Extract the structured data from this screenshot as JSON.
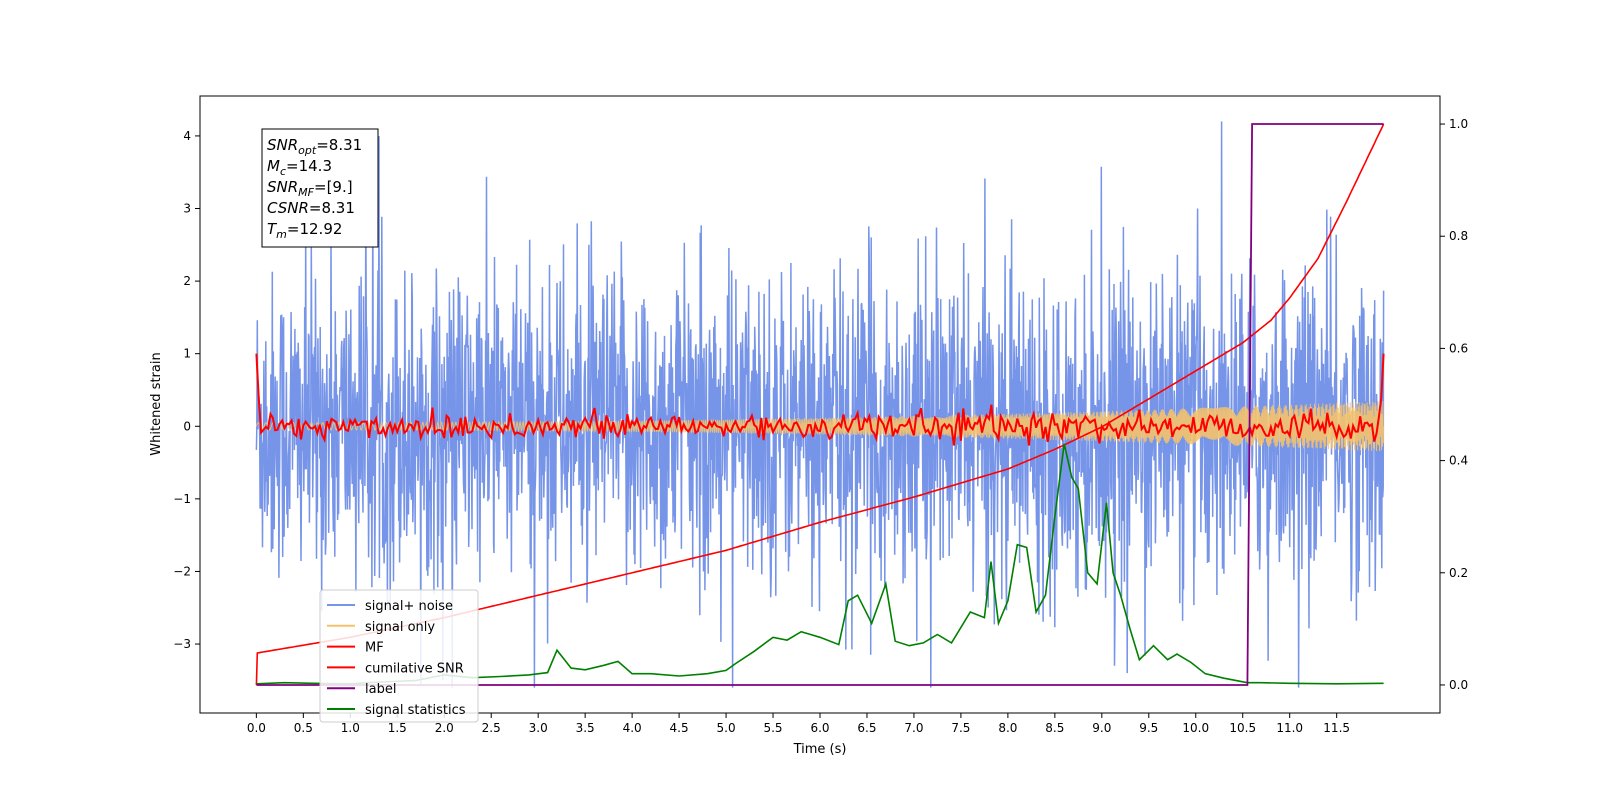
{
  "chart_data": {
    "type": "line",
    "xlabel": "Time (s)",
    "ylabel": "Whitened strain",
    "xlim": [
      -0.6,
      12.6
    ],
    "ylim_left": [
      -3.95,
      4.55
    ],
    "ylim_right": [
      -0.05,
      1.05
    ],
    "x_ticks": [
      "0.0",
      "0.5",
      "1.0",
      "1.5",
      "2.0",
      "2.5",
      "3.0",
      "3.5",
      "4.0",
      "4.5",
      "5.0",
      "5.5",
      "6.0",
      "6.5",
      "7.0",
      "7.5",
      "8.0",
      "8.5",
      "9.0",
      "9.5",
      "10.0",
      "10.5",
      "11.0",
      "11.5"
    ],
    "y_ticks_left": [
      "−3",
      "−2",
      "−1",
      "0",
      "1",
      "2",
      "3",
      "4"
    ],
    "y_ticks_right": [
      "0.0",
      "0.2",
      "0.4",
      "0.6",
      "0.8",
      "1.0"
    ],
    "annotation": {
      "snr_opt": {
        "sym": "SNR",
        "sub": "opt",
        "value": "=8.31"
      },
      "mc": {
        "sym": "M",
        "sub": "c",
        "value": "=14.3"
      },
      "snr_mf": {
        "sym": "SNR",
        "sub": "MF",
        "value": "=[9.]"
      },
      "csnr": {
        "sym": "CSNR",
        "value": "=8.31"
      },
      "tm": {
        "sym": "T",
        "sub": "m",
        "value": "=12.92"
      }
    },
    "legend": [
      {
        "name": "signal+ noise",
        "color": "#7694e8"
      },
      {
        "name": "signal only",
        "color": "#f5c26b"
      },
      {
        "name": "MF",
        "color": "#ff0000"
      },
      {
        "name": "cumilative SNR",
        "color": "#ff0000"
      },
      {
        "name": "label",
        "color": "#800080"
      },
      {
        "name": "signal statistics",
        "color": "#008000"
      }
    ],
    "series": {
      "signal_noise": {
        "name": "signal+ noise",
        "axis": "left",
        "color": "#7694e8",
        "description_range": [
          -3.6,
          4.2
        ],
        "x_range": [
          0.0,
          12.0
        ]
      },
      "signal_only": {
        "name": "signal only",
        "axis": "left",
        "color": "#f5c26b",
        "envelope_start": 0.05,
        "envelope_end": 0.35
      },
      "mf": {
        "name": "MF",
        "axis": "left",
        "color": "#ff0000",
        "start": 1.0,
        "end": 1.0,
        "noise_amp": 0.1
      },
      "cumulative_snr": {
        "name": "cumilative SNR",
        "axis": "right",
        "color": "#ff0000",
        "x": [
          0.0,
          0.01,
          1,
          2,
          3,
          4,
          5,
          6,
          7,
          7.5,
          8,
          8.5,
          9,
          9.5,
          10,
          10.5,
          10.8,
          11,
          11.3,
          11.6,
          12.0
        ],
        "y": [
          0.0,
          0.057,
          0.085,
          0.12,
          0.16,
          0.2,
          0.24,
          0.29,
          0.335,
          0.36,
          0.385,
          0.42,
          0.46,
          0.51,
          0.56,
          0.61,
          0.65,
          0.69,
          0.76,
          0.86,
          1.0
        ]
      },
      "label": {
        "name": "label",
        "axis": "right",
        "color": "#800080",
        "x": [
          0.0,
          10.55,
          10.6,
          12.0
        ],
        "y": [
          0.0,
          0.0,
          1.0,
          1.0
        ]
      },
      "signal_statistics": {
        "name": "signal statistics",
        "axis": "right",
        "color": "#008000",
        "x": [
          0.0,
          0.3,
          0.6,
          1.0,
          1.3,
          1.7,
          2.0,
          2.3,
          2.6,
          2.9,
          3.1,
          3.2,
          3.35,
          3.5,
          3.7,
          3.85,
          4.0,
          4.2,
          4.5,
          4.8,
          5.0,
          5.1,
          5.3,
          5.5,
          5.65,
          5.8,
          6.0,
          6.2,
          6.3,
          6.4,
          6.55,
          6.7,
          6.8,
          6.95,
          7.1,
          7.25,
          7.4,
          7.6,
          7.75,
          7.82,
          7.9,
          8.0,
          8.1,
          8.2,
          8.3,
          8.4,
          8.5,
          8.6,
          8.68,
          8.75,
          8.85,
          8.95,
          9.05,
          9.12,
          9.2,
          9.3,
          9.4,
          9.55,
          9.7,
          9.8,
          9.95,
          10.1,
          10.3,
          10.55,
          10.7,
          11.0,
          11.5,
          12.0
        ],
        "y": [
          0.002,
          0.004,
          0.003,
          0.002,
          0.005,
          0.008,
          0.018,
          0.013,
          0.015,
          0.018,
          0.022,
          0.062,
          0.03,
          0.027,
          0.035,
          0.042,
          0.02,
          0.02,
          0.016,
          0.02,
          0.026,
          0.038,
          0.06,
          0.085,
          0.08,
          0.095,
          0.085,
          0.072,
          0.15,
          0.16,
          0.11,
          0.18,
          0.078,
          0.07,
          0.075,
          0.09,
          0.075,
          0.13,
          0.12,
          0.22,
          0.11,
          0.15,
          0.25,
          0.245,
          0.13,
          0.16,
          0.3,
          0.43,
          0.37,
          0.35,
          0.2,
          0.18,
          0.325,
          0.2,
          0.16,
          0.1,
          0.045,
          0.07,
          0.045,
          0.055,
          0.04,
          0.02,
          0.012,
          0.004,
          0.004,
          0.003,
          0.002,
          0.003
        ]
      }
    }
  }
}
